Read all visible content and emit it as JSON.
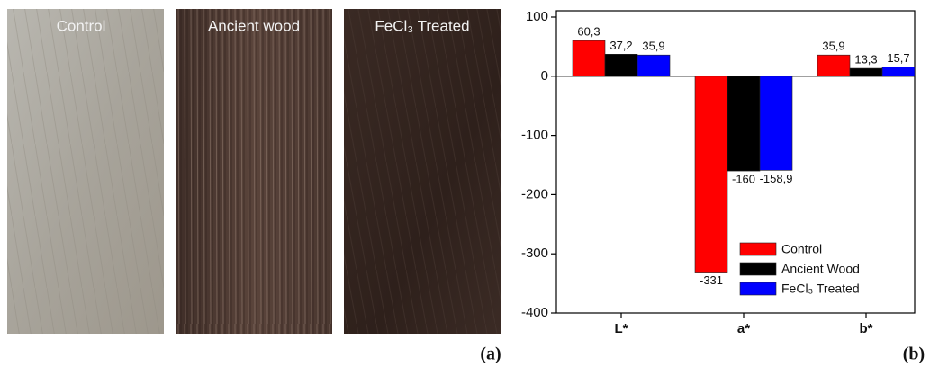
{
  "photos": {
    "labels": [
      "Control",
      "Ancient wood",
      "FeCl₃ Treated"
    ]
  },
  "panel_labels": [
    "(a)",
    "(b)"
  ],
  "chart_data": {
    "type": "bar",
    "categories": [
      "L*",
      "a*",
      "b*"
    ],
    "series": [
      {
        "name": "Control",
        "color": "#ff0000",
        "values": [
          60.3,
          -331,
          35.9
        ],
        "value_labels": [
          "60,3",
          "-331",
          "35,9"
        ]
      },
      {
        "name": "Ancient Wood",
        "color": "#000000",
        "values": [
          37.2,
          -160,
          13.3
        ],
        "value_labels": [
          "37,2",
          "-160",
          "13,3"
        ]
      },
      {
        "name": "FeCl₃ Treated",
        "color": "#0000ff",
        "values": [
          35.9,
          -158.9,
          15.7
        ],
        "value_labels": [
          "35,9",
          "-158,9",
          "15,7"
        ]
      }
    ],
    "ylim": [
      -400,
      100
    ],
    "yticks": [
      -400,
      -300,
      -200,
      -100,
      0,
      100
    ],
    "legend": "lower right"
  }
}
